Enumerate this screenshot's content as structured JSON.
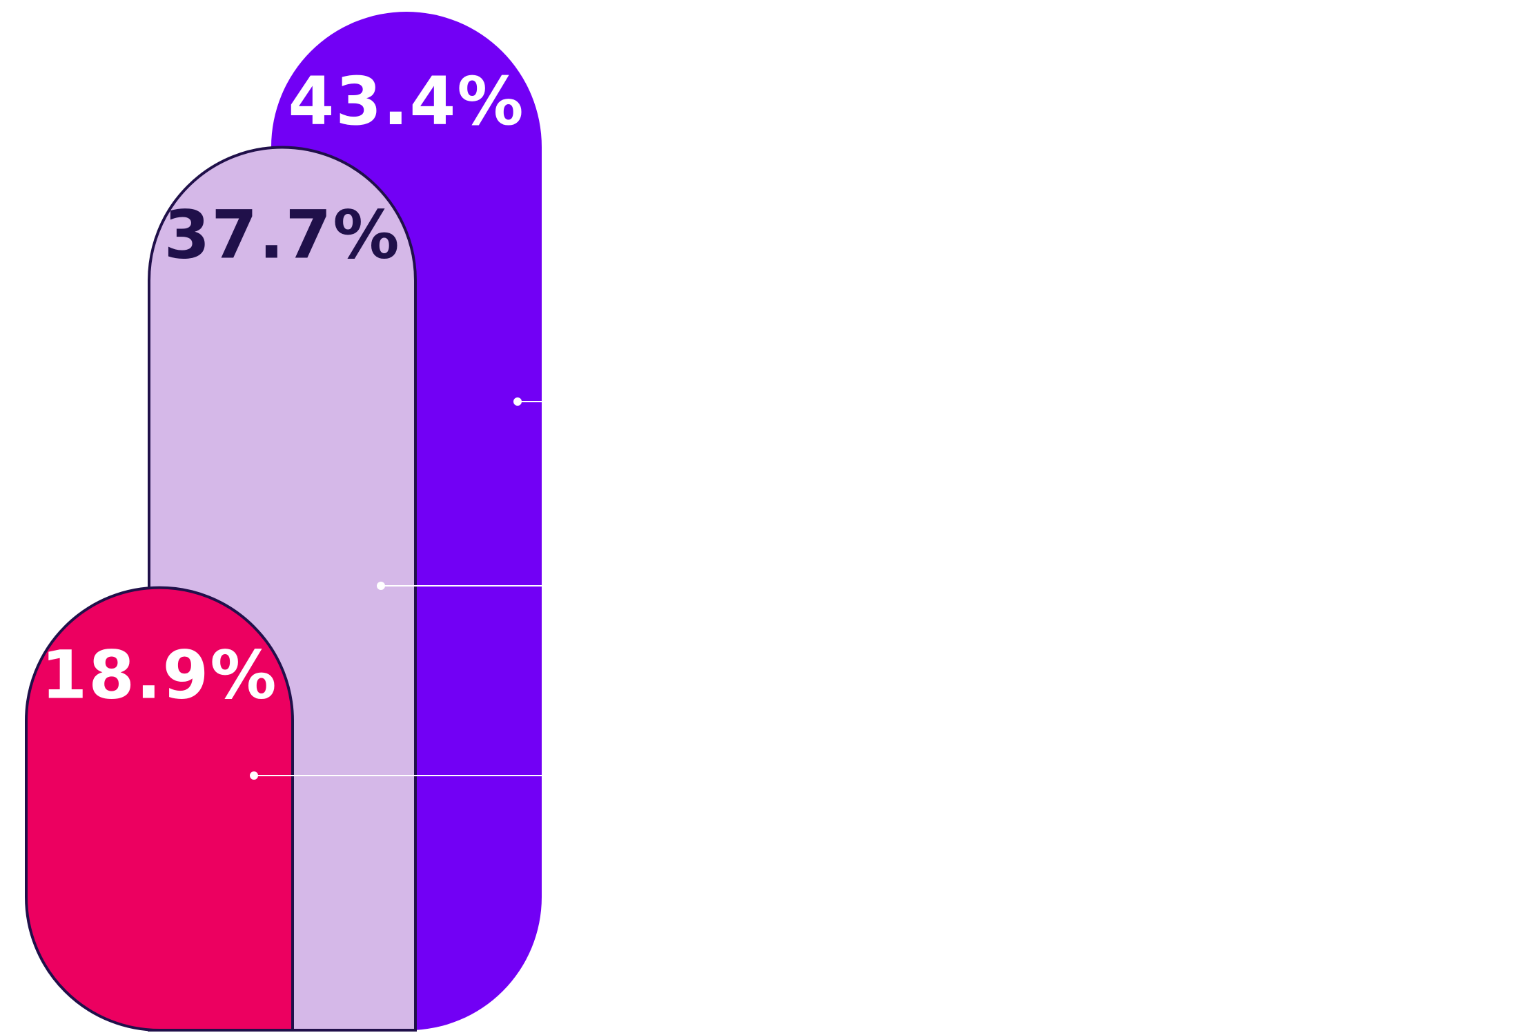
{
  "chart_data": {
    "type": "bar",
    "categories": [
      "",
      "",
      ""
    ],
    "values": [
      43.4,
      37.7,
      18.9
    ],
    "labels": [
      "43.4%",
      "37.7%",
      "18.9%"
    ],
    "colors": [
      "#7200F5",
      "#D5B8E8",
      "#EC0060"
    ],
    "label_colors": [
      "#FFFFFF",
      "#20104A",
      "#FFFFFF"
    ],
    "outline_color": "#20104A",
    "connector_color": "#FFFFFF",
    "ylim": [
      0,
      43.4
    ],
    "grid": false,
    "legend": "none"
  }
}
